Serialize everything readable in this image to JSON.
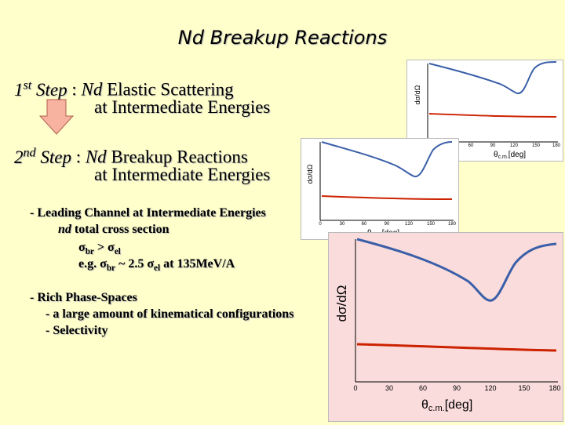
{
  "title": "Nd Breakup Reactions",
  "step1": {
    "ordinal": "1",
    "ordinal_suffix": "st",
    "step_word": " Step",
    "sep": " : ",
    "nd": "Nd",
    "rest": " Elastic Scattering",
    "line2": "at Intermediate Energies"
  },
  "step2": {
    "ordinal": "2",
    "ordinal_suffix": "nd",
    "step_word": " Step",
    "sep": " : ",
    "nd": "Nd",
    "rest": " Breakup Reactions",
    "line2": "at Intermediate Energies"
  },
  "bullet1": {
    "heading": "- Leading Channel at Intermediate Energies",
    "nd_text": "nd",
    "line2_rest": " total cross section",
    "sigma": "σ",
    "br": "br",
    "gt": " > ",
    "el": "el",
    "eg_prefix": "e.g. ",
    "approx": " ~ 2.5 ",
    "eg_suffix": " at 135MeV/A"
  },
  "bullet2": {
    "heading": "- Rich Phase-Spaces",
    "line2": "- a large amount of kinematical configurations",
    "line3": "- Selectivity"
  },
  "axis": {
    "ylabel": "dσ/dΩ",
    "xlabel_theta": "θ",
    "xlabel_sub": "c.m.",
    "xlabel_unit": "[deg]",
    "ticks": [
      "0",
      "30",
      "60",
      "90",
      "120",
      "150",
      "180"
    ]
  },
  "colors": {
    "background": "#ffffcc",
    "blue_curve": "#3a5fa8",
    "red_curve": "#cc2200",
    "arrow_fill": "#f7b2a0",
    "large_panel": "#fadcdc"
  }
}
